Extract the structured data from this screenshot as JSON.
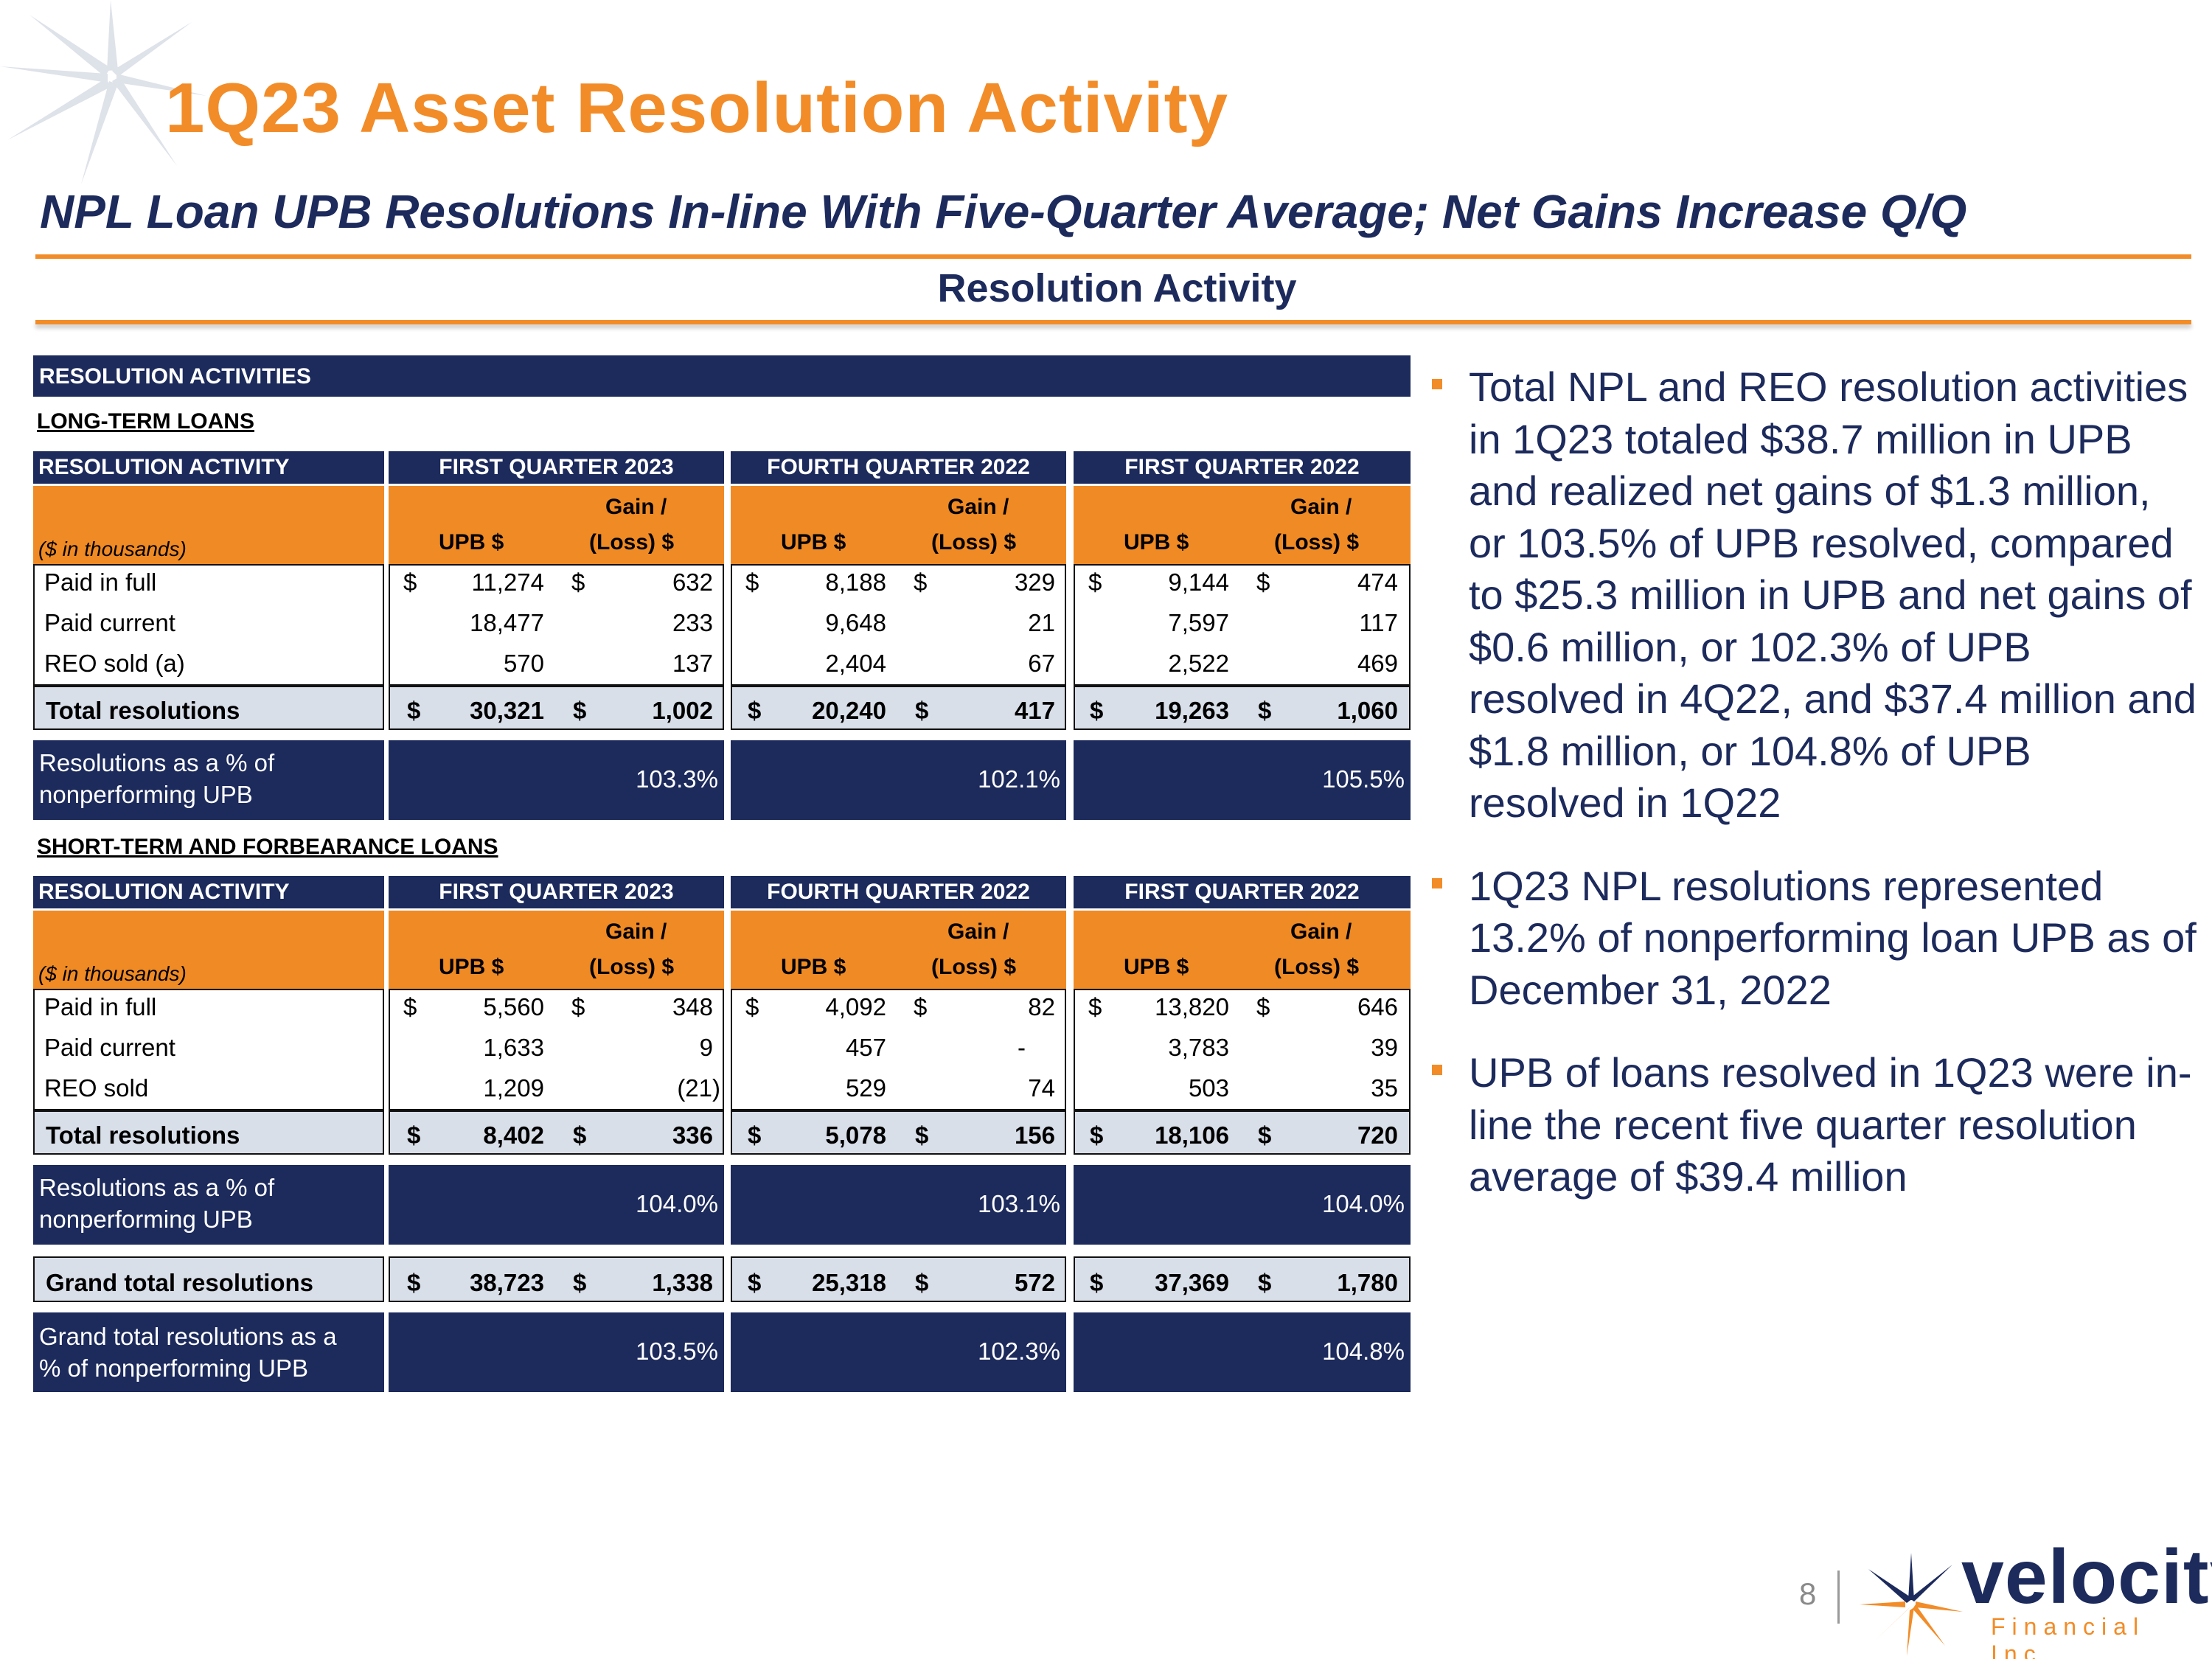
{
  "title": "1Q23 Asset Resolution Activity",
  "subtitle": "NPL Loan UPB Resolutions In-line With Five-Quarter Average; Net Gains Increase Q/Q",
  "section_title": "Resolution Activity",
  "table": {
    "banner": "RESOLUTION ACTIVITIES",
    "header": {
      "activity": "RESOLUTION ACTIVITY",
      "quarters": [
        "FIRST QUARTER 2023",
        "FOURTH QUARTER 2022",
        "FIRST QUARTER 2022"
      ],
      "in_thousands": "($ in thousands)",
      "upb": "UPB $",
      "gain_line1": "Gain /",
      "gain_line2": "(Loss) $"
    },
    "dollar": "$",
    "long_term": {
      "label": "LONG-TERM LOANS",
      "rows": [
        {
          "name": "Paid in full",
          "v": [
            "11,274",
            "632",
            "8,188",
            "329",
            "9,144",
            "474"
          ]
        },
        {
          "name": "Paid current",
          "v": [
            "18,477",
            "233",
            "9,648",
            "21",
            "7,597",
            "117"
          ]
        },
        {
          "name": "REO sold (a)",
          "v": [
            "570",
            "137",
            "2,404",
            "67",
            "2,522",
            "469"
          ]
        }
      ],
      "total": {
        "name": "Total resolutions",
        "v": [
          "30,321",
          "1,002",
          "20,240",
          "417",
          "19,263",
          "1,060"
        ]
      },
      "pct_label_1": "Resolutions as a % of",
      "pct_label_2": "nonperforming UPB",
      "pct": [
        "103.3%",
        "102.1%",
        "105.5%"
      ]
    },
    "short_term": {
      "label": "SHORT-TERM AND FORBEARANCE LOANS",
      "rows": [
        {
          "name": "Paid in full",
          "v": [
            "5,560",
            "348",
            "4,092",
            "82",
            "13,820",
            "646"
          ]
        },
        {
          "name": "Paid current",
          "v": [
            "1,633",
            "9",
            "457",
            "-",
            "3,783",
            "39"
          ]
        },
        {
          "name": "REO sold",
          "v": [
            "1,209",
            "(21)",
            "529",
            "74",
            "503",
            "35"
          ]
        }
      ],
      "total": {
        "name": "Total resolutions",
        "v": [
          "8,402",
          "336",
          "5,078",
          "156",
          "18,106",
          "720"
        ]
      },
      "pct_label_1": "Resolutions as a % of",
      "pct_label_2": "nonperforming UPB",
      "pct": [
        "104.0%",
        "103.1%",
        "104.0%"
      ]
    },
    "grand": {
      "name": "Grand total resolutions",
      "v": [
        "38,723",
        "1,338",
        "25,318",
        "572",
        "37,369",
        "1,780"
      ],
      "pct_label_1": "Grand total resolutions as a",
      "pct_label_2": "% of nonperforming UPB",
      "pct": [
        "103.5%",
        "102.3%",
        "104.8%"
      ]
    }
  },
  "bullets": [
    "Total NPL and REO resolution activities in 1Q23 totaled $38.7 million in UPB and realized net gains of $1.3 million, or 103.5% of UPB resolved, compared to $25.3 million in UPB and net gains of $0.6 million, or 102.3% of UPB resolved in 4Q22, and $37.4 million and $1.8 million, or 104.8% of UPB resolved in 1Q22",
    "1Q23 NPL resolutions represented 13.2% of nonperforming loan UPB as of December 31, 2022",
    "UPB of loans resolved in 1Q23 were in-line the recent five quarter resolution average of $39.4 million"
  ],
  "footer": {
    "page_number": "8",
    "logo_word": "velocity",
    "logo_sub": "Financial Inc."
  },
  "colors": {
    "navy": "#1C2A5C",
    "orange": "#F08A24",
    "grey": "#D9DFE9"
  }
}
